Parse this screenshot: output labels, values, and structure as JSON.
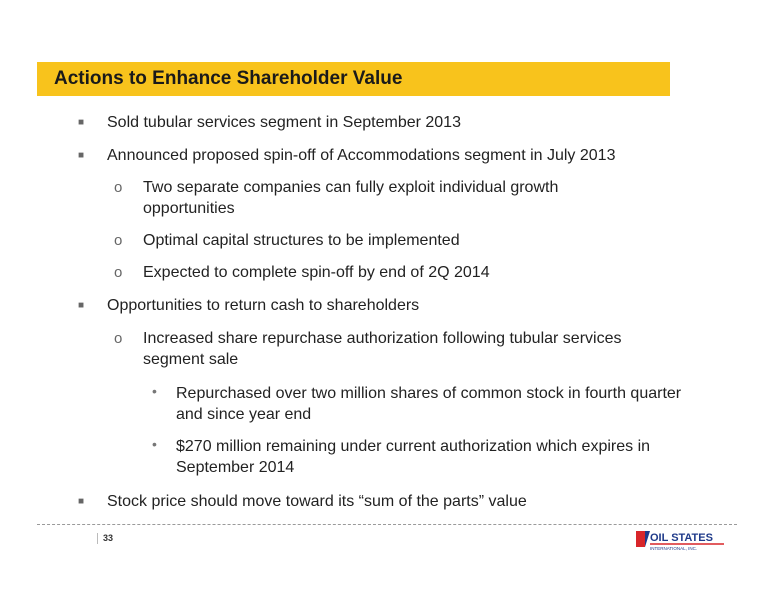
{
  "slide": {
    "title": "Actions to Enhance Shareholder Value",
    "page_number": "33"
  },
  "bullets": [
    {
      "level": 1,
      "marker": "■",
      "text": "Sold tubular services segment in September 2013"
    },
    {
      "level": 1,
      "marker": "■",
      "text": "Announced proposed spin-off of Accommodations segment in July 2013"
    },
    {
      "level": 2,
      "marker": "o",
      "text": "Two separate companies can fully exploit individual growth opportunities"
    },
    {
      "level": 2,
      "marker": "o",
      "text": "Optimal capital structures to be implemented"
    },
    {
      "level": 2,
      "marker": "o",
      "text": "Expected to complete spin-off by end of 2Q 2014"
    },
    {
      "level": 1,
      "marker": "■",
      "text": "Opportunities to return cash to shareholders"
    },
    {
      "level": 2,
      "marker": "o",
      "text": "Increased share repurchase authorization following tubular services segment sale"
    },
    {
      "level": 3,
      "marker": "•",
      "text": "Repurchased over two million shares of common stock in fourth quarter and since year end"
    },
    {
      "level": 3,
      "marker": "•",
      "text": "$270 million remaining under current authorization which expires in September 2014"
    },
    {
      "level": 1,
      "marker": "■",
      "text": "Stock price should move toward its “sum of the parts” value"
    }
  ],
  "logo": {
    "text": "OIL STATES",
    "subtext": "INTERNATIONAL, INC."
  },
  "colors": {
    "title_bar": "#f8c31c",
    "logo_blue": "#1f3a8a",
    "logo_red": "#d8262a"
  }
}
